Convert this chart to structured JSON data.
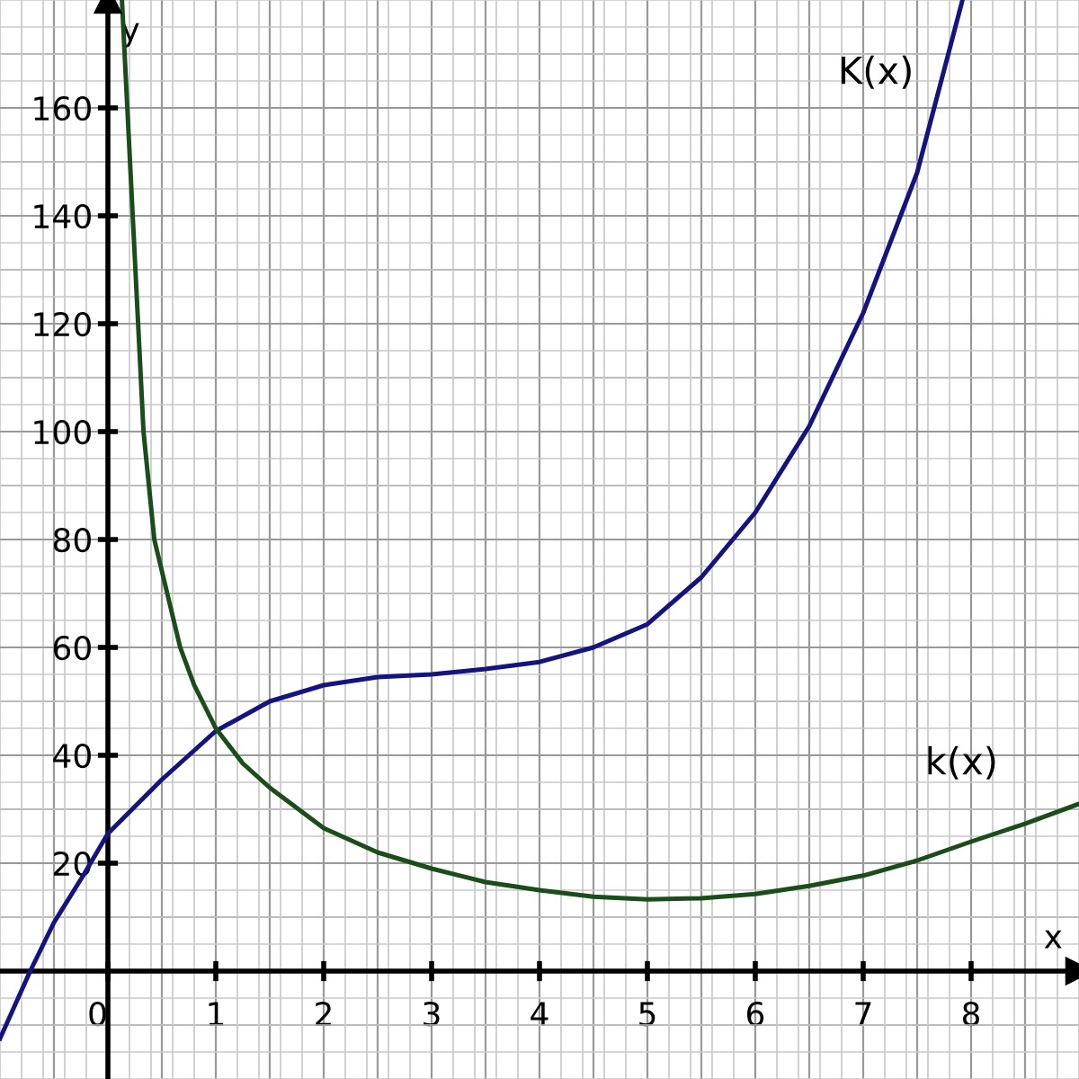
{
  "chart_data": {
    "type": "line",
    "xlabel": "x",
    "ylabel": "y",
    "xlim": [
      -1,
      9
    ],
    "ylim": [
      -20,
      180
    ],
    "xticks": [
      0,
      1,
      2,
      3,
      4,
      5,
      6,
      7,
      8
    ],
    "yticks": [
      20,
      40,
      60,
      80,
      100,
      120,
      140,
      160
    ],
    "grid": true,
    "marker": "none",
    "line_style": "solid",
    "series": [
      {
        "name": "K(x)",
        "color": "#14147f",
        "x": [
          -1,
          -0.72,
          -0.5,
          -0.22,
          0,
          0.5,
          1,
          1.5,
          2,
          2.5,
          3,
          3.5,
          4,
          4.5,
          5,
          5.5,
          6,
          6.5,
          7,
          7.5,
          7.92
        ],
        "values": [
          -12.5,
          0,
          9,
          18,
          25.5,
          35.5,
          44.5,
          50,
          53,
          54.5,
          55,
          56,
          57.3,
          60,
          64.3,
          73,
          85,
          101,
          122,
          148,
          180
        ]
      },
      {
        "name": "k(x)",
        "color": "#1a4d1a",
        "x": [
          0.13,
          0.18,
          0.28,
          0.33,
          0.43,
          0.67,
          0.8,
          1,
          1.25,
          1.5,
          2,
          2.5,
          3,
          3.5,
          4,
          4.5,
          5,
          5.5,
          6,
          6.5,
          7,
          7.5,
          8,
          8.5,
          9
        ],
        "values": [
          180,
          160,
          120,
          100,
          80,
          60,
          53,
          45,
          38.5,
          34,
          26.5,
          22,
          19,
          16.5,
          15,
          13.8,
          13.3,
          13.5,
          14.3,
          15.8,
          17.7,
          20.5,
          24,
          27.3,
          31
        ]
      }
    ]
  }
}
